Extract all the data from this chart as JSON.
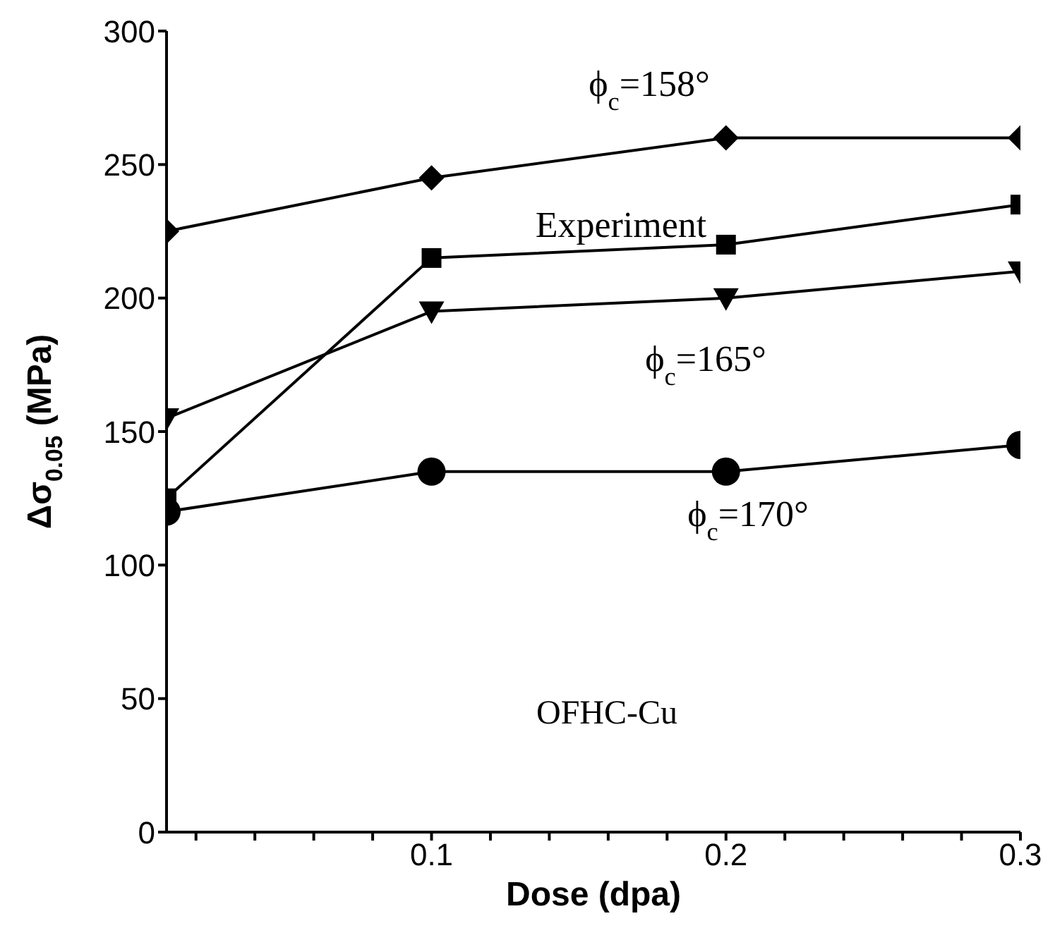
{
  "chart_data": {
    "type": "line",
    "xlabel": "Dose (dpa)",
    "ylabel": "Δσ$_{0.05}$ (MPa)",
    "x": [
      0.01,
      0.1,
      0.2,
      0.3
    ],
    "xlim": [
      0.01,
      0.3
    ],
    "xticks": [
      {
        "value": 0.02,
        "label": null
      },
      {
        "value": 0.04,
        "label": null
      },
      {
        "value": 0.06,
        "label": null
      },
      {
        "value": 0.08,
        "label": null
      },
      0.1,
      {
        "value": 0.12,
        "label": null
      },
      {
        "value": 0.14,
        "label": null
      },
      {
        "value": 0.16,
        "label": null
      },
      {
        "value": 0.18,
        "label": null
      },
      0.2,
      {
        "value": 0.22,
        "label": null
      },
      {
        "value": 0.24,
        "label": null
      },
      {
        "value": 0.26,
        "label": null
      },
      {
        "value": 0.28,
        "label": null
      },
      0.3
    ],
    "ylim": [
      0,
      300
    ],
    "yticks": [
      0,
      50,
      100,
      150,
      200,
      250,
      300
    ],
    "series": [
      {
        "name": "ϕ$_{c}$=158°",
        "color": "#000000",
        "marker": "diamond",
        "values": [
          225,
          245,
          260,
          260
        ]
      },
      {
        "name": "Experiment",
        "color": "#000000",
        "marker": "square",
        "values": [
          125,
          215,
          220,
          235
        ]
      },
      {
        "name": "ϕ$_{c}$=165°",
        "color": "#000000",
        "marker": "triangle",
        "values": [
          155,
          195,
          200,
          210
        ]
      },
      {
        "name": "ϕ$_{c}$=170°",
        "color": "#000000",
        "marker": "circle",
        "values": [
          120,
          135,
          135,
          145
        ]
      }
    ],
    "annotations": [
      "OFHC-Cu"
    ]
  }
}
